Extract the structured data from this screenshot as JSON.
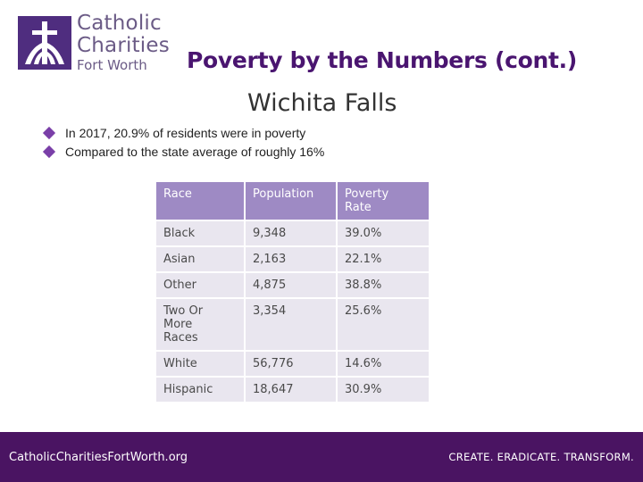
{
  "logo": {
    "line1": "Catholic",
    "line2": "Charities",
    "line3": "Fort Worth"
  },
  "slide": {
    "title": "Poverty by the Numbers (cont.)",
    "subtitle": "Wichita Falls",
    "bullets": [
      "In 2017, 20.9% of residents were in poverty",
      "Compared to the state average of roughly 16%"
    ]
  },
  "table": {
    "headers": [
      "Race",
      "Population",
      "Poverty Rate"
    ],
    "rows": [
      [
        "Black",
        "9,348",
        "39.0%"
      ],
      [
        "Asian",
        "2,163",
        "22.1%"
      ],
      [
        "Other",
        "4,875",
        "38.8%"
      ],
      [
        "Two Or More Races",
        "3,354",
        "25.6%"
      ],
      [
        "White",
        "56,776",
        "14.6%"
      ],
      [
        "Hispanic",
        "18,647",
        "30.9%"
      ]
    ]
  },
  "footer": {
    "url": "CatholicCharitiesFortWorth.org",
    "tagline": "CREATE. ERADICATE. TRANSFORM."
  },
  "colors": {
    "brand_purple": "#4a1462",
    "header_cell": "#9e8ac4",
    "body_cell": "#e9e6ef",
    "bullet": "#7a3fa8"
  }
}
